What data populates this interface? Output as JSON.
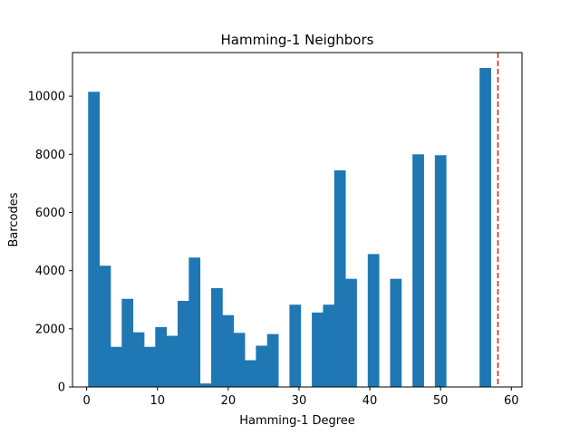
{
  "chart_data": {
    "type": "bar",
    "title": "Hamming-1 Neighbors",
    "xlabel": "Hamming-1 Degree",
    "ylabel": "Barcodes",
    "xlim": [
      -2,
      61.5
    ],
    "ylim": [
      0,
      11500
    ],
    "xticks": [
      0,
      10,
      20,
      30,
      40,
      50,
      60
    ],
    "yticks": [
      0,
      2000,
      4000,
      6000,
      8000,
      10000
    ],
    "bin_width": 1.58,
    "bar_color": "#1f77b4",
    "bars": [
      {
        "x": 1.0,
        "value": 10150
      },
      {
        "x": 2.58,
        "value": 4170
      },
      {
        "x": 4.16,
        "value": 1380
      },
      {
        "x": 5.74,
        "value": 3030
      },
      {
        "x": 7.32,
        "value": 1880
      },
      {
        "x": 8.9,
        "value": 1380
      },
      {
        "x": 10.48,
        "value": 2060
      },
      {
        "x": 12.06,
        "value": 1760
      },
      {
        "x": 13.64,
        "value": 2960
      },
      {
        "x": 15.22,
        "value": 4450
      },
      {
        "x": 16.8,
        "value": 120
      },
      {
        "x": 18.38,
        "value": 3400
      },
      {
        "x": 19.96,
        "value": 2470
      },
      {
        "x": 21.54,
        "value": 1860
      },
      {
        "x": 23.12,
        "value": 920
      },
      {
        "x": 24.7,
        "value": 1420
      },
      {
        "x": 26.28,
        "value": 1820
      },
      {
        "x": 29.44,
        "value": 2830
      },
      {
        "x": 32.6,
        "value": 2560
      },
      {
        "x": 34.18,
        "value": 2830
      },
      {
        "x": 35.76,
        "value": 7450
      },
      {
        "x": 37.34,
        "value": 3720
      },
      {
        "x": 40.5,
        "value": 4570
      },
      {
        "x": 43.66,
        "value": 3720
      },
      {
        "x": 46.82,
        "value": 8000
      },
      {
        "x": 49.98,
        "value": 7970
      },
      {
        "x": 56.3,
        "value": 10970
      }
    ],
    "reference_line": {
      "x": 58.1,
      "color": "#d62728",
      "style": "dashed"
    },
    "grid": false,
    "legend": "none"
  }
}
